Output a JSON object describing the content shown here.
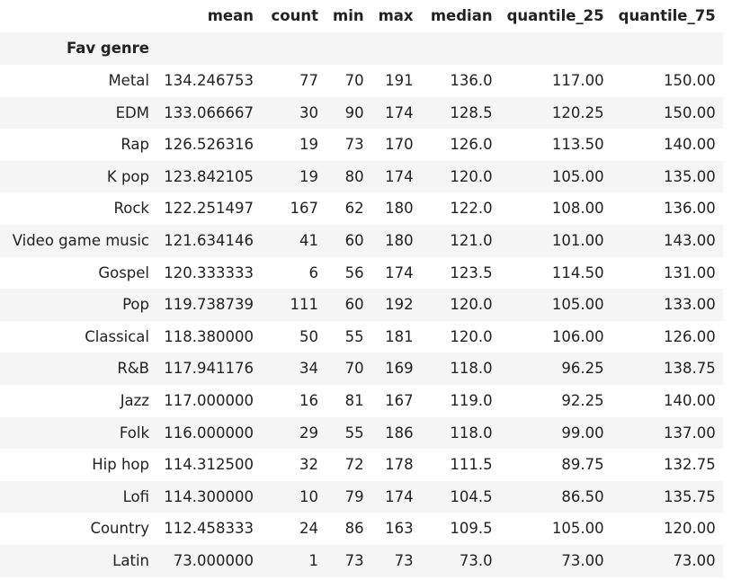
{
  "table": {
    "columns": [
      "mean",
      "count",
      "min",
      "max",
      "median",
      "quantile_25",
      "quantile_75"
    ],
    "index_name": "Fav genre",
    "rows": [
      {
        "genre": "Metal",
        "mean": "134.246753",
        "count": "77",
        "min": "70",
        "max": "191",
        "median": "136.0",
        "quantile_25": "117.00",
        "quantile_75": "150.00"
      },
      {
        "genre": "EDM",
        "mean": "133.066667",
        "count": "30",
        "min": "90",
        "max": "174",
        "median": "128.5",
        "quantile_25": "120.25",
        "quantile_75": "150.00"
      },
      {
        "genre": "Rap",
        "mean": "126.526316",
        "count": "19",
        "min": "73",
        "max": "170",
        "median": "126.0",
        "quantile_25": "113.50",
        "quantile_75": "140.00"
      },
      {
        "genre": "K pop",
        "mean": "123.842105",
        "count": "19",
        "min": "80",
        "max": "174",
        "median": "120.0",
        "quantile_25": "105.00",
        "quantile_75": "135.00"
      },
      {
        "genre": "Rock",
        "mean": "122.251497",
        "count": "167",
        "min": "62",
        "max": "180",
        "median": "122.0",
        "quantile_25": "108.00",
        "quantile_75": "136.00"
      },
      {
        "genre": "Video game music",
        "mean": "121.634146",
        "count": "41",
        "min": "60",
        "max": "180",
        "median": "121.0",
        "quantile_25": "101.00",
        "quantile_75": "143.00"
      },
      {
        "genre": "Gospel",
        "mean": "120.333333",
        "count": "6",
        "min": "56",
        "max": "174",
        "median": "123.5",
        "quantile_25": "114.50",
        "quantile_75": "131.00"
      },
      {
        "genre": "Pop",
        "mean": "119.738739",
        "count": "111",
        "min": "60",
        "max": "192",
        "median": "120.0",
        "quantile_25": "105.00",
        "quantile_75": "133.00"
      },
      {
        "genre": "Classical",
        "mean": "118.380000",
        "count": "50",
        "min": "55",
        "max": "181",
        "median": "120.0",
        "quantile_25": "106.00",
        "quantile_75": "126.00"
      },
      {
        "genre": "R&B",
        "mean": "117.941176",
        "count": "34",
        "min": "70",
        "max": "169",
        "median": "118.0",
        "quantile_25": "96.25",
        "quantile_75": "138.75"
      },
      {
        "genre": "Jazz",
        "mean": "117.000000",
        "count": "16",
        "min": "81",
        "max": "167",
        "median": "119.0",
        "quantile_25": "92.25",
        "quantile_75": "140.00"
      },
      {
        "genre": "Folk",
        "mean": "116.000000",
        "count": "29",
        "min": "55",
        "max": "186",
        "median": "118.0",
        "quantile_25": "99.00",
        "quantile_75": "137.00"
      },
      {
        "genre": "Hip hop",
        "mean": "114.312500",
        "count": "32",
        "min": "72",
        "max": "178",
        "median": "111.5",
        "quantile_25": "89.75",
        "quantile_75": "132.75"
      },
      {
        "genre": "Lofi",
        "mean": "114.300000",
        "count": "10",
        "min": "79",
        "max": "174",
        "median": "104.5",
        "quantile_25": "86.50",
        "quantile_75": "135.75"
      },
      {
        "genre": "Country",
        "mean": "112.458333",
        "count": "24",
        "min": "86",
        "max": "163",
        "median": "109.5",
        "quantile_25": "105.00",
        "quantile_75": "120.00"
      },
      {
        "genre": "Latin",
        "mean": "73.000000",
        "count": "1",
        "min": "73",
        "max": "73",
        "median": "73.0",
        "quantile_25": "73.00",
        "quantile_75": "73.00"
      }
    ]
  }
}
